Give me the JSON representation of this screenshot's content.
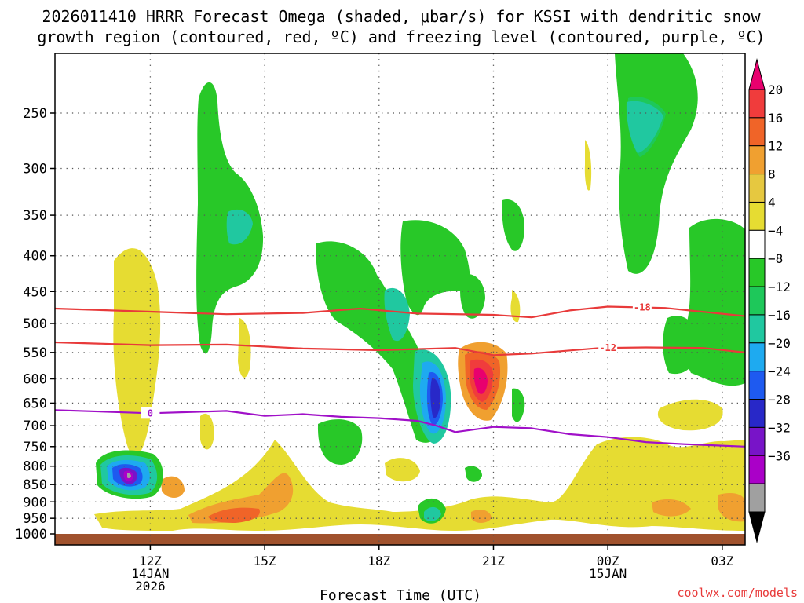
{
  "chart_data": {
    "type": "heatmap",
    "title": [
      "2026011410 HRRR Forecast Omega (shaded, μbar/s) for KSSI with dendritic snow",
      "growth region (contoured, red, ºC) and freezing level (contoured, purple, ºC)"
    ],
    "xlabel": "Forecast Time (UTC)",
    "credit": "coolwx.com/models",
    "x_range_hours": [
      9.5,
      27.6
    ],
    "x_ticks": [
      {
        "hour": 12,
        "label": "12Z",
        "sub": [
          "14JAN",
          "2026"
        ]
      },
      {
        "hour": 15,
        "label": "15Z",
        "sub": []
      },
      {
        "hour": 18,
        "label": "18Z",
        "sub": []
      },
      {
        "hour": 21,
        "label": "21Z",
        "sub": []
      },
      {
        "hour": 24,
        "label": "00Z",
        "sub": [
          "15JAN"
        ]
      },
      {
        "hour": 27,
        "label": "03Z",
        "sub": []
      }
    ],
    "y_ticks_hpa": [
      250,
      300,
      350,
      400,
      450,
      500,
      550,
      600,
      650,
      700,
      750,
      800,
      850,
      900,
      950,
      1000
    ],
    "colorbar": {
      "labels": [
        "20",
        "16",
        "12",
        "8",
        "4",
        "−4",
        "−8",
        "−12",
        "−16",
        "−20",
        "−24",
        "−28",
        "−32",
        "−36"
      ],
      "bins": [
        {
          "color": "#e8006e"
        },
        {
          "color": "#f03c3c"
        },
        {
          "color": "#f06428"
        },
        {
          "color": "#f0a030"
        },
        {
          "color": "#e6c840"
        },
        {
          "color": "#e6dc32"
        },
        {
          "color": "#ffffff"
        },
        {
          "color": "#28c828"
        },
        {
          "color": "#1ec85a"
        },
        {
          "color": "#20c8a0"
        },
        {
          "color": "#1eaaf0"
        },
        {
          "color": "#1e5af0"
        },
        {
          "color": "#2828c8"
        },
        {
          "color": "#7814c8"
        },
        {
          "color": "#aa00c8"
        },
        {
          "color": "#a0a0a0"
        },
        {
          "color": "#000000"
        }
      ]
    },
    "contours": [
      {
        "name": "dgz-top",
        "label": "-18",
        "color": "#e83a3a",
        "label_hour": 24.9,
        "points": [
          [
            9.5,
            476
          ],
          [
            12,
            481
          ],
          [
            14,
            485
          ],
          [
            16,
            483
          ],
          [
            17.5,
            476
          ],
          [
            19,
            484
          ],
          [
            21,
            486
          ],
          [
            22,
            490
          ],
          [
            23,
            479
          ],
          [
            24,
            473
          ],
          [
            25.5,
            475
          ],
          [
            27.6,
            488
          ]
        ]
      },
      {
        "name": "dgz-bottom",
        "label": "-12",
        "color": "#e83a3a",
        "label_hour": 24,
        "points": [
          [
            9.5,
            532
          ],
          [
            12,
            537
          ],
          [
            14,
            536
          ],
          [
            16,
            543
          ],
          [
            18,
            546
          ],
          [
            20,
            542
          ],
          [
            21,
            555
          ],
          [
            22,
            552
          ],
          [
            23.8,
            542
          ],
          [
            25,
            541
          ],
          [
            26.5,
            542
          ],
          [
            27.6,
            550
          ]
        ]
      },
      {
        "name": "freezing-level",
        "label": "0",
        "color": "#a010c8",
        "label_hour": 12,
        "points": [
          [
            9.5,
            665
          ],
          [
            12,
            672
          ],
          [
            14,
            667
          ],
          [
            15,
            678
          ],
          [
            16,
            674
          ],
          [
            17,
            680
          ],
          [
            18,
            683
          ],
          [
            19,
            689
          ],
          [
            19.5,
            700
          ],
          [
            20,
            715
          ],
          [
            21,
            703
          ],
          [
            22,
            706
          ],
          [
            23,
            720
          ],
          [
            24,
            727
          ],
          [
            25,
            739
          ],
          [
            26,
            744
          ],
          [
            27.6,
            750
          ]
        ]
      }
    ]
  }
}
